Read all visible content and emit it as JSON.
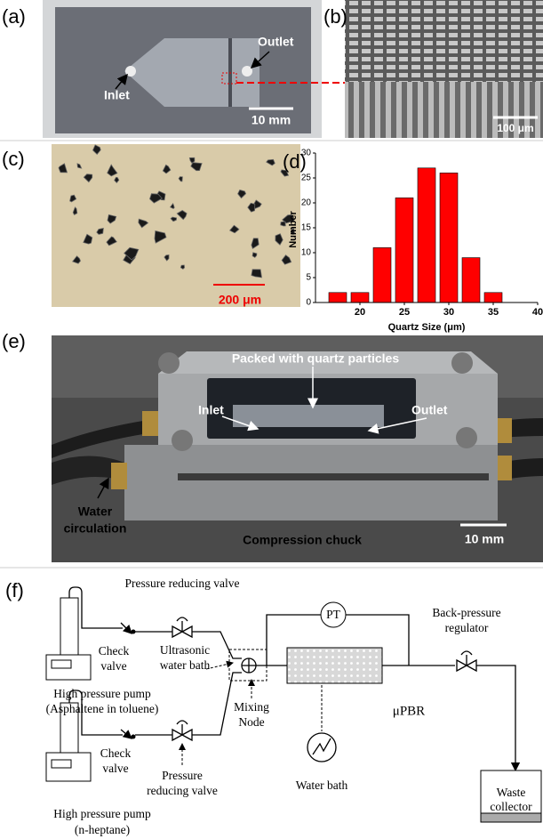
{
  "panel_labels": [
    "(a)",
    "(b)",
    "(c)",
    "(d)",
    "(e)",
    "(f)"
  ],
  "panel_a": {
    "inlet": "Inlet",
    "outlet": "Outlet",
    "scale": "10 mm"
  },
  "panel_b": {
    "scale": "100 μm"
  },
  "panel_c": {
    "scale": "200 μm"
  },
  "chart_data": {
    "type": "histogram",
    "xlabel": "Quartz Size (μm)",
    "ylabel": "Number",
    "bins": [
      16.25,
      18.75,
      21.25,
      23.75,
      26.25,
      28.75,
      31.25,
      33.75,
      36.25
    ],
    "values": [
      2,
      2,
      11,
      21,
      27,
      26,
      9,
      2
    ],
    "color": "#ff0000",
    "xlim": [
      15,
      40
    ],
    "xticks": [
      20,
      25,
      30,
      35,
      40
    ],
    "ylim": [
      0,
      30
    ],
    "yticks": [
      0,
      5,
      10,
      15,
      20,
      25,
      30
    ]
  },
  "panel_e": {
    "title": "Packed with quartz particles",
    "inlet": "Inlet",
    "outlet": "Outlet",
    "water": [
      "Water",
      "circulation"
    ],
    "chuck": "Compression chuck",
    "scale": "10 mm"
  },
  "panel_f": {
    "prv_top": "Pressure reducing valve",
    "check_top": [
      "Check",
      "valve"
    ],
    "ultrasonic": [
      "Ultrasonic",
      "water bath"
    ],
    "pump_top": [
      "High pressure pump",
      "(Asphaltene in toluene)"
    ],
    "pt": "PT",
    "bpr": [
      "Back-pressure",
      "regulator"
    ],
    "mixing": [
      "Mixing",
      "Node"
    ],
    "pbr": "μPBR",
    "check_bottom": [
      "Check",
      "valve"
    ],
    "prv_bottom": [
      "Pressure",
      "reducing valve"
    ],
    "water_bath": "Water bath",
    "waste": [
      "Waste",
      "collector"
    ],
    "pump_bottom": [
      "High pressure pump",
      "(n-heptane)"
    ]
  }
}
